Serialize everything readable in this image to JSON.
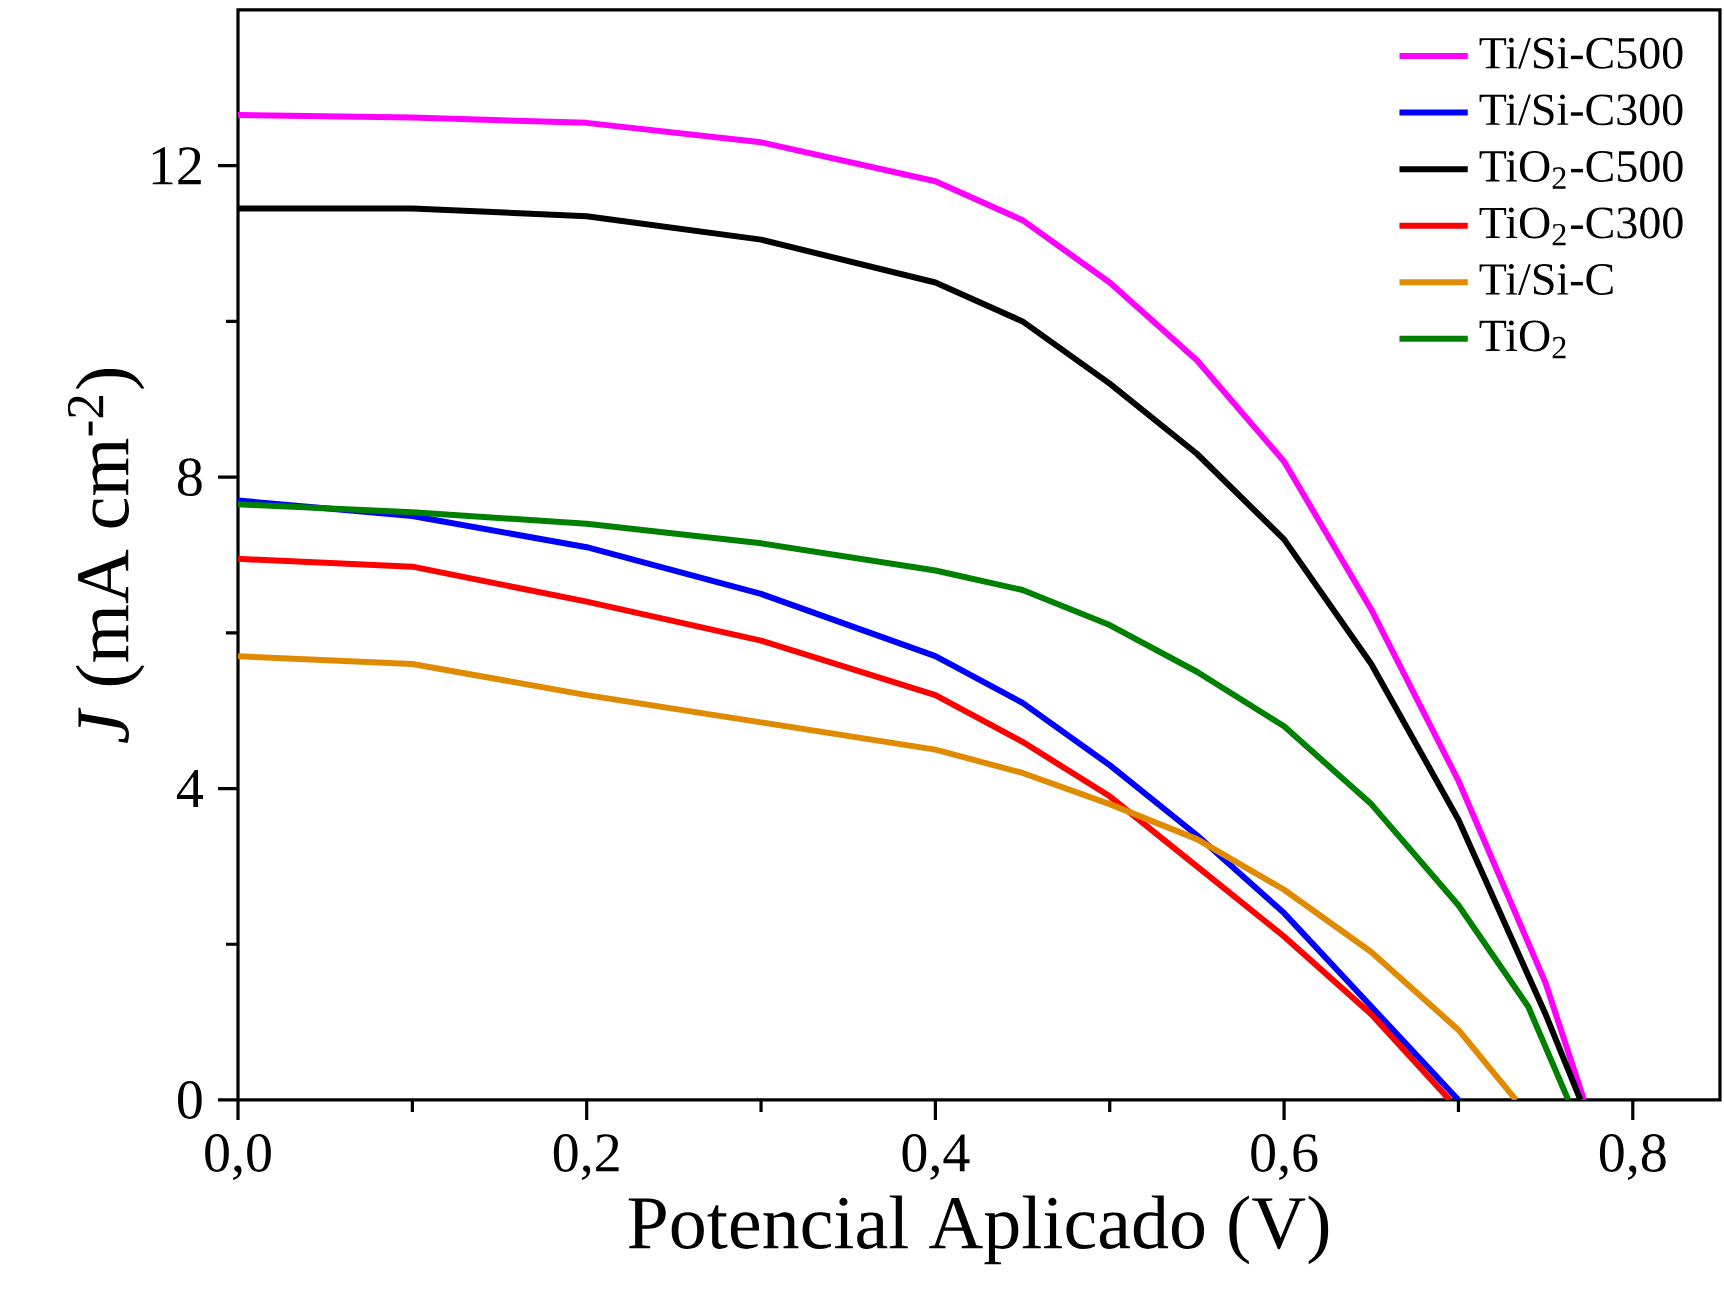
{
  "chart_data": {
    "type": "line",
    "xlabel": "Potencial Aplicado (V)",
    "ylabel": "*J* (mA cm$^{-2}$)",
    "xlim": [
      0,
      0.85
    ],
    "ylim": [
      0,
      14
    ],
    "xticks": [
      {
        "value": 0,
        "label": "0,0"
      },
      {
        "value": 0.2,
        "label": "0,2"
      },
      {
        "value": 0.4,
        "label": "0,4"
      },
      {
        "value": 0.6,
        "label": "0,6"
      },
      {
        "value": 0.8,
        "label": "0,8"
      }
    ],
    "yticks": [
      0,
      4,
      8,
      12
    ],
    "grid": false,
    "legend": "top right",
    "marker": "none",
    "line_style": "solid",
    "series": [
      {
        "name": "Ti/Si-C500",
        "color": "#ff00ff",
        "x": [
          0,
          0.1,
          0.2,
          0.3,
          0.4,
          0.45,
          0.5,
          0.55,
          0.6,
          0.65,
          0.7,
          0.75,
          0.772
        ],
        "values": [
          12.65,
          12.62,
          12.55,
          12.3,
          11.8,
          11.3,
          10.5,
          9.5,
          8.2,
          6.3,
          4.1,
          1.5,
          0
        ]
      },
      {
        "name": "Ti/Si-C300",
        "color": "#0000ff",
        "x": [
          0,
          0.1,
          0.2,
          0.3,
          0.4,
          0.45,
          0.5,
          0.55,
          0.6,
          0.65,
          0.7
        ],
        "values": [
          7.7,
          7.5,
          7.1,
          6.5,
          5.7,
          5.1,
          4.3,
          3.4,
          2.4,
          1.2,
          0
        ]
      },
      {
        "name": "TiO$_{2}$-C500",
        "color": "#000000",
        "x": [
          0,
          0.1,
          0.2,
          0.3,
          0.4,
          0.45,
          0.5,
          0.55,
          0.6,
          0.65,
          0.7,
          0.75,
          0.77
        ],
        "values": [
          11.45,
          11.45,
          11.35,
          11.05,
          10.5,
          10.0,
          9.2,
          8.3,
          7.2,
          5.6,
          3.6,
          1.1,
          0
        ]
      },
      {
        "name": "TiO$_{2}$-C300",
        "color": "#ff0000",
        "x": [
          0,
          0.1,
          0.2,
          0.3,
          0.4,
          0.45,
          0.5,
          0.55,
          0.6,
          0.65,
          0.695
        ],
        "values": [
          6.95,
          6.85,
          6.4,
          5.9,
          5.2,
          4.6,
          3.9,
          3.0,
          2.1,
          1.1,
          0
        ]
      },
      {
        "name": "Ti/Si-C",
        "color": "#e08a00",
        "x": [
          0,
          0.1,
          0.2,
          0.3,
          0.4,
          0.45,
          0.5,
          0.55,
          0.6,
          0.65,
          0.7,
          0.733
        ],
        "values": [
          5.7,
          5.6,
          5.2,
          4.85,
          4.5,
          4.2,
          3.8,
          3.35,
          2.7,
          1.9,
          0.9,
          0
        ]
      },
      {
        "name": "TiO$_{2}$",
        "color": "#008000",
        "x": [
          0,
          0.1,
          0.2,
          0.3,
          0.4,
          0.45,
          0.5,
          0.55,
          0.6,
          0.65,
          0.7,
          0.74,
          0.763
        ],
        "values": [
          7.65,
          7.55,
          7.4,
          7.15,
          6.8,
          6.55,
          6.1,
          5.5,
          4.8,
          3.8,
          2.5,
          1.2,
          0
        ]
      }
    ]
  }
}
